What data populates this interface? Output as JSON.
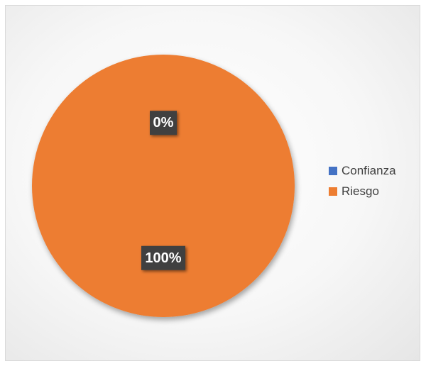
{
  "chart_data": {
    "type": "pie",
    "title": "",
    "slices": [
      {
        "name": "Confianza",
        "value": 0,
        "label": "0%",
        "color": "#4472C4"
      },
      {
        "name": "Riesgo",
        "value": 100,
        "label": "100%",
        "color": "#ED7D31"
      }
    ],
    "legend": {
      "position": "right",
      "items": [
        "Confianza",
        "Riesgo"
      ]
    }
  }
}
